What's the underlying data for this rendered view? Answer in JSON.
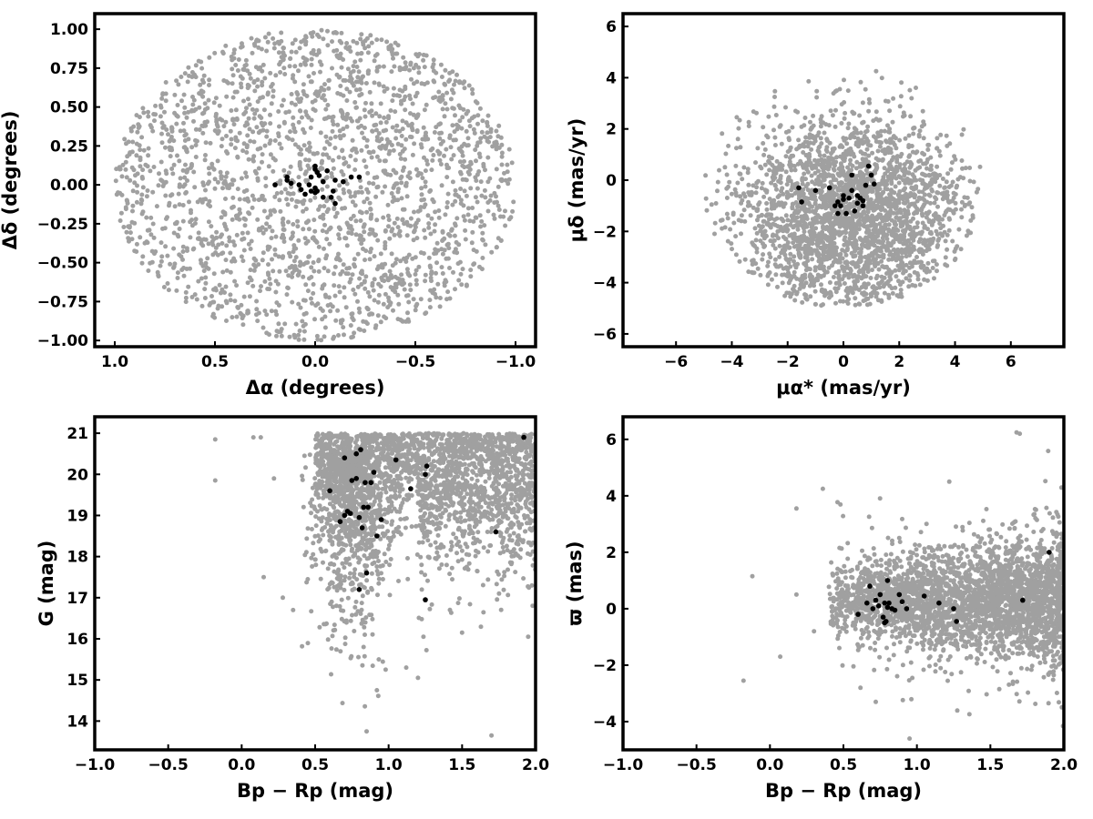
{
  "colors": {
    "field": "#a0a0a0",
    "members": "#000000",
    "frame": "#000000"
  },
  "chart_data": [
    {
      "type": "scatter",
      "panel": "sky-position",
      "xlabel": "Δα (degrees)",
      "ylabel": "Δδ (degrees)",
      "xlim": [
        1.1,
        -1.1
      ],
      "ylim": [
        -1.04,
        1.1
      ],
      "x_reversed": true,
      "xticks": [
        1.0,
        0.5,
        0.0,
        -0.5,
        -1.0
      ],
      "xtick_labels": [
        "1.0",
        "0.5",
        "0.0",
        "−0.5",
        "−1.0"
      ],
      "yticks": [
        -1.0,
        -0.75,
        -0.5,
        -0.25,
        0.0,
        0.25,
        0.5,
        0.75,
        1.0
      ],
      "ytick_labels": [
        "−1.00",
        "−0.75",
        "−0.50",
        "−0.25",
        "0.00",
        "0.25",
        "0.50",
        "0.75",
        "1.00"
      ],
      "grid": false,
      "field_distribution": {
        "shape": "disk",
        "center": [
          0.0,
          0.0
        ],
        "radius": 1.0,
        "count": 2200,
        "color": "#a0a0a0"
      },
      "members": {
        "color": "#000000",
        "points": [
          [
            0.2,
            0.0
          ],
          [
            0.14,
            0.03
          ],
          [
            0.14,
            0.05
          ],
          [
            0.12,
            0.01
          ],
          [
            0.08,
            0.0
          ],
          [
            0.07,
            -0.03
          ],
          [
            0.05,
            -0.06
          ],
          [
            0.03,
            0.0
          ],
          [
            0.02,
            -0.04
          ],
          [
            0.0,
            -0.05
          ],
          [
            -0.01,
            -0.04
          ],
          [
            0.02,
            0.05
          ],
          [
            0.0,
            0.1
          ],
          [
            -0.01,
            0.08
          ],
          [
            0.0,
            0.12
          ],
          [
            -0.02,
            0.06
          ],
          [
            -0.04,
            0.02
          ],
          [
            -0.06,
            0.09
          ],
          [
            -0.04,
            -0.08
          ],
          [
            -0.08,
            -0.08
          ],
          [
            -0.1,
            -0.12
          ],
          [
            -0.09,
            -0.04
          ],
          [
            -0.1,
            0.03
          ],
          [
            -0.14,
            0.02
          ],
          [
            -0.18,
            0.05
          ],
          [
            -0.22,
            0.05
          ],
          [
            0.0,
            -0.02
          ]
        ]
      }
    },
    {
      "type": "scatter",
      "panel": "proper-motion",
      "xlabel": "μα* (mas/yr)",
      "ylabel": "μδ (mas/yr)",
      "xlim": [
        -7.9,
        7.9
      ],
      "ylim": [
        -6.5,
        6.5
      ],
      "xticks": [
        -6,
        -4,
        -2,
        0,
        2,
        4,
        6
      ],
      "xtick_labels": [
        "−6",
        "−4",
        "−2",
        "0",
        "2",
        "4",
        "6"
      ],
      "yticks": [
        -6,
        -4,
        -2,
        0,
        2,
        4,
        6
      ],
      "ytick_labels": [
        "−6",
        "−4",
        "−2",
        "0",
        "2",
        "4",
        "6"
      ],
      "grid": false,
      "field_distribution": {
        "shape": "clipped-cloud",
        "center": [
          0.3,
          -1.4
        ],
        "spread": [
          2.1,
          1.9
        ],
        "x_range": [
          -5.0,
          4.9
        ],
        "y_range": [
          -4.9,
          4.5
        ],
        "count": 2600,
        "color": "#a0a0a0"
      },
      "members": {
        "color": "#000000",
        "points": [
          [
            -1.6,
            -0.3
          ],
          [
            -1.5,
            -0.85
          ],
          [
            -1.0,
            -0.4
          ],
          [
            -0.5,
            -0.3
          ],
          [
            -0.3,
            -1.0
          ],
          [
            -0.2,
            -0.85
          ],
          [
            -0.1,
            -1.0
          ],
          [
            0.0,
            -0.6
          ],
          [
            0.1,
            -1.3
          ],
          [
            0.2,
            -0.7
          ],
          [
            0.3,
            0.2
          ],
          [
            0.3,
            -0.4
          ],
          [
            0.4,
            -1.2
          ],
          [
            0.5,
            -0.6
          ],
          [
            0.6,
            -0.7
          ],
          [
            0.7,
            -1.0
          ],
          [
            0.7,
            -0.8
          ],
          [
            0.8,
            -0.2
          ],
          [
            0.9,
            0.55
          ],
          [
            1.0,
            0.2
          ],
          [
            1.1,
            -0.15
          ],
          [
            0.5,
            -0.9
          ],
          [
            0.0,
            -0.75
          ],
          [
            -0.2,
            -1.3
          ]
        ]
      }
    },
    {
      "type": "scatter",
      "panel": "color-magnitude",
      "xlabel": "Bp − Rp (mag)",
      "ylabel": "G (mag)",
      "xlim": [
        -1.0,
        2.0
      ],
      "ylim": [
        13.3,
        21.4
      ],
      "xticks": [
        -1.0,
        -0.5,
        0.0,
        0.5,
        1.0,
        1.5,
        2.0
      ],
      "xtick_labels": [
        "−1.0",
        "−0.5",
        "0.0",
        "0.5",
        "1.0",
        "1.5",
        "2.0"
      ],
      "yticks": [
        14,
        15,
        16,
        17,
        18,
        19,
        20,
        21
      ],
      "ytick_labels": [
        "14",
        "15",
        "16",
        "17",
        "18",
        "19",
        "20",
        "21"
      ],
      "grid": false,
      "field_distribution": {
        "shape": "color-magnitude-locus",
        "x_range": [
          0.5,
          2.0
        ],
        "y_range": [
          13.6,
          21.0
        ],
        "count": 3000,
        "color": "#a0a0a0"
      },
      "members": {
        "color": "#000000",
        "points": [
          [
            0.6,
            19.6
          ],
          [
            0.67,
            18.85
          ],
          [
            0.7,
            19.0
          ],
          [
            0.7,
            20.4
          ],
          [
            0.72,
            19.1
          ],
          [
            0.74,
            19.05
          ],
          [
            0.75,
            19.85
          ],
          [
            0.78,
            19.9
          ],
          [
            0.78,
            20.5
          ],
          [
            0.8,
            18.95
          ],
          [
            0.81,
            20.6
          ],
          [
            0.82,
            18.7
          ],
          [
            0.83,
            19.2
          ],
          [
            0.84,
            19.8
          ],
          [
            0.85,
            17.6
          ],
          [
            0.86,
            19.2
          ],
          [
            0.88,
            19.8
          ],
          [
            0.8,
            17.2
          ],
          [
            0.9,
            20.05
          ],
          [
            0.92,
            18.5
          ],
          [
            0.95,
            18.9
          ],
          [
            1.05,
            20.35
          ],
          [
            1.15,
            19.65
          ],
          [
            1.25,
            20.0
          ],
          [
            1.26,
            20.2
          ],
          [
            1.25,
            16.95
          ],
          [
            1.73,
            18.6
          ],
          [
            1.92,
            20.9
          ]
        ]
      }
    },
    {
      "type": "scatter",
      "panel": "parallax",
      "xlabel": "Bp − Rp (mag)",
      "ylabel": "ϖ (mas)",
      "xlim": [
        -1.0,
        2.0
      ],
      "ylim": [
        -5.0,
        6.8
      ],
      "xticks": [
        -1.0,
        -0.5,
        0.0,
        0.5,
        1.0,
        1.5,
        2.0
      ],
      "xtick_labels": [
        "−1.0",
        "−0.5",
        "0.0",
        "0.5",
        "1.0",
        "1.5",
        "2.0"
      ],
      "yticks": [
        -4,
        -2,
        0,
        2,
        4,
        6
      ],
      "ytick_labels": [
        "−4",
        "−2",
        "0",
        "2",
        "4",
        "6"
      ],
      "grid": false,
      "field_distribution": {
        "shape": "band",
        "center_y": 0.3,
        "x_range": [
          0.4,
          2.0
        ],
        "count": 3000,
        "color": "#a0a0a0"
      },
      "members": {
        "color": "#000000",
        "points": [
          [
            0.6,
            -0.2
          ],
          [
            0.66,
            0.2
          ],
          [
            0.68,
            0.8
          ],
          [
            0.7,
            0.0
          ],
          [
            0.72,
            0.3
          ],
          [
            0.74,
            0.1
          ],
          [
            0.75,
            0.5
          ],
          [
            0.77,
            -0.3
          ],
          [
            0.78,
            0.2
          ],
          [
            0.79,
            -0.45
          ],
          [
            0.8,
            0.05
          ],
          [
            0.8,
            1.0
          ],
          [
            0.81,
            0.2
          ],
          [
            0.83,
            0.0
          ],
          [
            0.85,
            -0.05
          ],
          [
            0.88,
            0.5
          ],
          [
            0.9,
            0.25
          ],
          [
            0.93,
            0.0
          ],
          [
            1.05,
            0.45
          ],
          [
            1.15,
            0.2
          ],
          [
            1.25,
            0.0
          ],
          [
            1.27,
            -0.45
          ],
          [
            1.72,
            0.3
          ],
          [
            1.9,
            2.0
          ],
          [
            0.78,
            -0.5
          ]
        ]
      }
    }
  ]
}
